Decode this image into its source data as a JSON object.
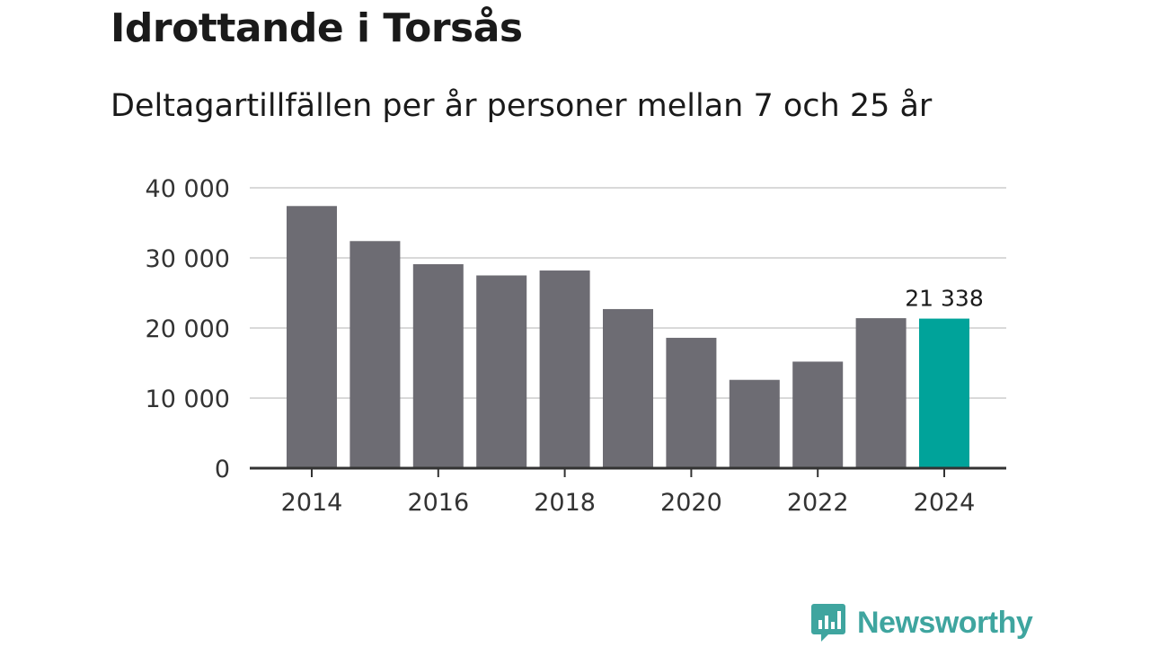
{
  "header": {
    "title": "Idrottande i Torsås",
    "subtitle": "Deltagartillfällen per år personer mellan 7 och 25 år"
  },
  "chart_data": {
    "type": "bar",
    "title": "Idrottande i Torsås",
    "subtitle": "Deltagartillfällen per år personer mellan 7 och 25 år",
    "categories": [
      "2014",
      "2015",
      "2016",
      "2017",
      "2018",
      "2019",
      "2020",
      "2021",
      "2022",
      "2023",
      "2024"
    ],
    "values": [
      37400,
      32400,
      29100,
      27500,
      28200,
      22700,
      18600,
      12600,
      15200,
      21400,
      21338
    ],
    "x_tick_labels": [
      "2014",
      "2016",
      "2018",
      "2020",
      "2022",
      "2024"
    ],
    "y_ticks": [
      0,
      10000,
      20000,
      30000,
      40000
    ],
    "y_tick_labels": [
      "0",
      "10 000",
      "20 000",
      "30 000",
      "40 000"
    ],
    "ylim": [
      0,
      40000
    ],
    "grid": true,
    "highlight_index": 10,
    "annotation": {
      "index": 10,
      "label": "21 338"
    },
    "colors": {
      "bar": "#6d6c73",
      "highlight": "#00a39a",
      "grid": "#d9d9d9",
      "axis": "#333333"
    }
  },
  "branding": {
    "name": "Newsworthy",
    "icon": "newsworthy-logo-icon",
    "color": "#3fa59f"
  }
}
